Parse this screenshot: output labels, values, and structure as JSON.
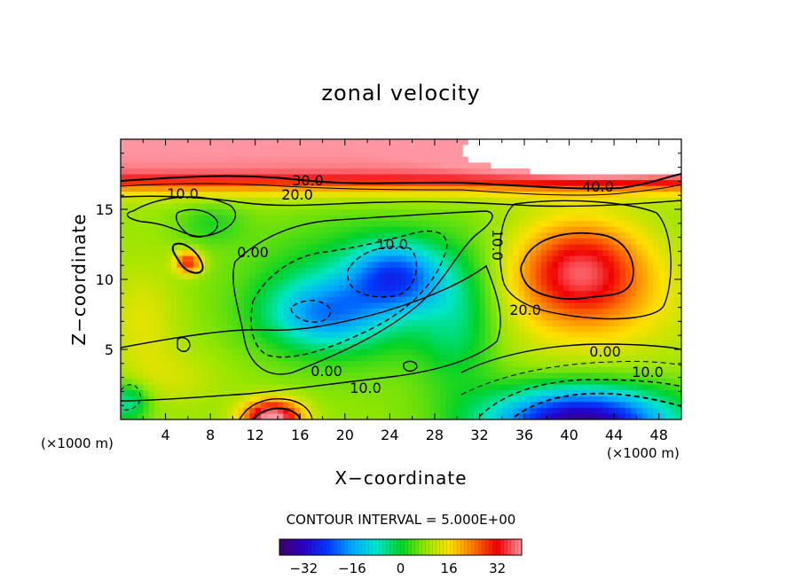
{
  "chart_data": {
    "type": "heatmap",
    "title": "zonal velocity",
    "xlabel": "X−coordinate",
    "ylabel": "Z−coordinate",
    "x_unit_left": "(×1000 m)",
    "x_unit_right": "(×1000 m)",
    "xlim": [
      0,
      50
    ],
    "ylim": [
      0,
      20
    ],
    "xticks": [
      "4",
      "8",
      "12",
      "16",
      "20",
      "24",
      "28",
      "32",
      "36",
      "40",
      "44",
      "48"
    ],
    "yticks": [
      "5",
      "10",
      "15"
    ],
    "contour_interval_text": "CONTOUR INTERVAL = 5.000E+00",
    "colorbar": {
      "min": -40,
      "max": 40,
      "ticks": [
        "−32",
        "−16",
        "0",
        "16",
        "32"
      ]
    },
    "contour_labels": [
      "30.0",
      "20.0",
      "10.0",
      "40.0",
      "0.00",
      "10.0",
      "10.0",
      "20.0",
      "0.00",
      "10.0",
      "0.00",
      "10.0"
    ],
    "features": [
      {
        "name": "upper jet",
        "x": 25,
        "z": 19,
        "value": 45
      },
      {
        "name": "east positive core",
        "x": 41,
        "z": 10.8,
        "value": 32
      },
      {
        "name": "bottom negative core",
        "x": 41,
        "z": 0.6,
        "value": -35
      },
      {
        "name": "central negative band",
        "x": 24,
        "z": 10,
        "value": -15
      },
      {
        "name": "central negative band lower",
        "x": 18,
        "z": 8,
        "value": -12
      },
      {
        "name": "bottom positive core",
        "x": 13.5,
        "z": 0.3,
        "value": 35
      }
    ]
  }
}
